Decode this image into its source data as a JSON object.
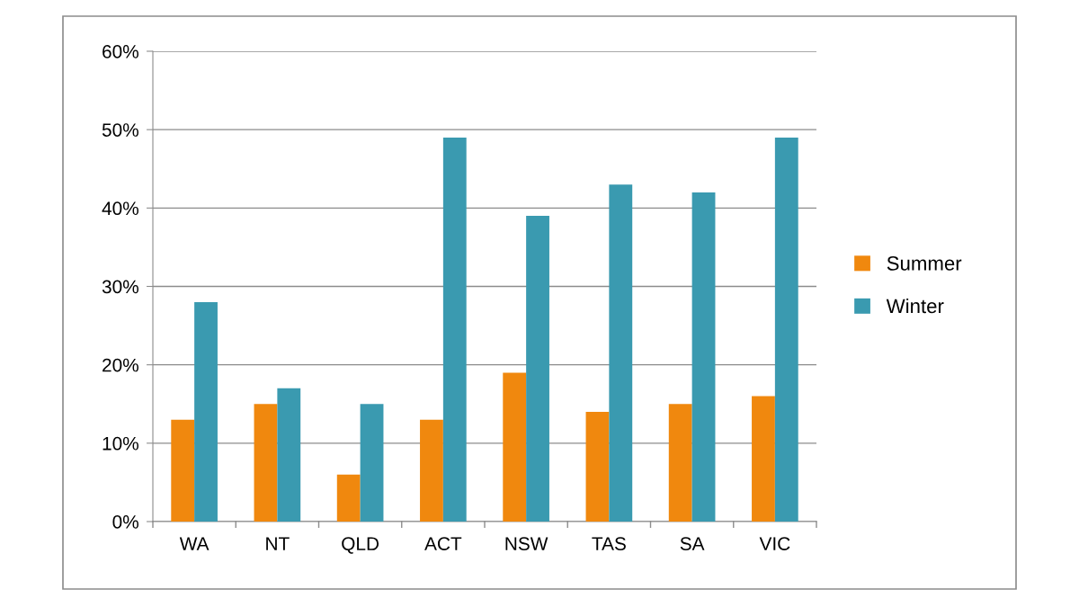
{
  "chart_data": {
    "type": "bar",
    "categories": [
      "WA",
      "NT",
      "QLD",
      "ACT",
      "NSW",
      "TAS",
      "SA",
      "VIC"
    ],
    "series": [
      {
        "name": "Summer",
        "color": "#f0880e",
        "values": [
          13,
          15,
          6,
          13,
          19,
          14,
          15,
          16
        ]
      },
      {
        "name": "Winter",
        "color": "#3a9ab0",
        "values": [
          28,
          17,
          15,
          49,
          39,
          43,
          42,
          49
        ]
      }
    ],
    "ylim": [
      0,
      60
    ],
    "yticks": [
      {
        "value": 0,
        "label": "0%"
      },
      {
        "value": 10,
        "label": "10%"
      },
      {
        "value": 20,
        "label": "20%"
      },
      {
        "value": 30,
        "label": "30%"
      },
      {
        "value": 40,
        "label": "40%"
      },
      {
        "value": 50,
        "label": "50%"
      },
      {
        "value": 60,
        "label": "60%"
      }
    ],
    "grid": "y",
    "legend": "right"
  }
}
